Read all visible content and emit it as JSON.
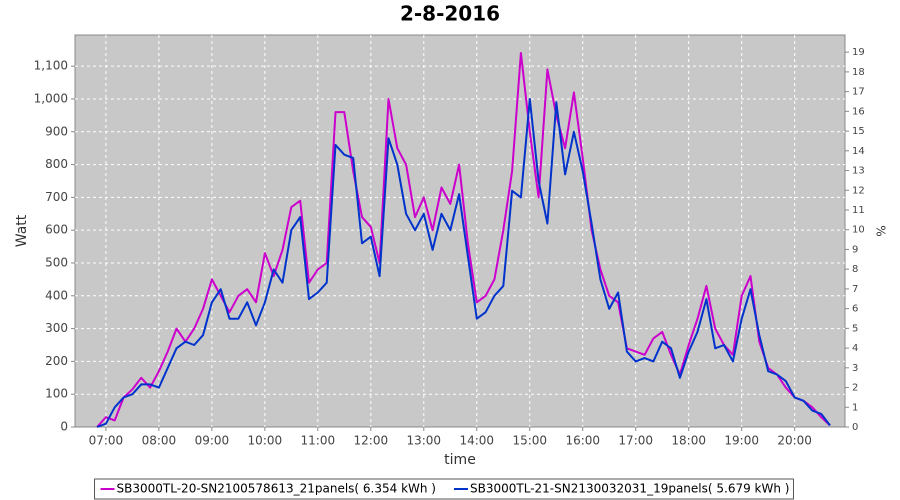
{
  "chart_data": {
    "type": "line",
    "title": "2-8-2016",
    "x_label": "time",
    "y_label": "Watt",
    "y2_label": "%",
    "x": [
      "06:50",
      "07:00",
      "07:10",
      "07:20",
      "07:30",
      "07:40",
      "07:50",
      "08:00",
      "08:10",
      "08:20",
      "08:30",
      "08:40",
      "08:50",
      "09:00",
      "09:10",
      "09:20",
      "09:30",
      "09:40",
      "09:50",
      "10:00",
      "10:10",
      "10:20",
      "10:30",
      "10:40",
      "10:50",
      "11:00",
      "11:10",
      "11:20",
      "11:30",
      "11:40",
      "11:50",
      "12:00",
      "12:10",
      "12:20",
      "12:30",
      "12:40",
      "12:50",
      "13:00",
      "13:10",
      "13:20",
      "13:30",
      "13:40",
      "13:50",
      "14:00",
      "14:10",
      "14:20",
      "14:30",
      "14:40",
      "14:50",
      "15:00",
      "15:10",
      "15:20",
      "15:30",
      "15:40",
      "15:50",
      "16:00",
      "16:10",
      "16:20",
      "16:30",
      "16:40",
      "16:50",
      "17:00",
      "17:10",
      "17:20",
      "17:30",
      "17:40",
      "17:50",
      "18:00",
      "18:10",
      "18:20",
      "18:30",
      "18:40",
      "18:50",
      "19:00",
      "19:10",
      "19:20",
      "19:30",
      "19:40",
      "19:50",
      "20:00",
      "20:10",
      "20:20",
      "20:30",
      "20:40"
    ],
    "series": [
      {
        "name": "SB3000TL-20-SN2100578613_21panels( 6.354 kWh )",
        "color": "#cc00cc",
        "values": [
          0,
          30,
          20,
          90,
          115,
          150,
          120,
          170,
          230,
          300,
          260,
          300,
          360,
          450,
          400,
          350,
          400,
          420,
          380,
          530,
          460,
          540,
          670,
          690,
          440,
          480,
          500,
          960,
          960,
          780,
          640,
          610,
          500,
          1000,
          850,
          800,
          640,
          700,
          600,
          730,
          680,
          800,
          560,
          380,
          400,
          450,
          600,
          780,
          1140,
          900,
          700,
          1090,
          950,
          850,
          1020,
          820,
          600,
          480,
          400,
          380,
          240,
          230,
          220,
          270,
          290,
          220,
          160,
          250,
          330,
          430,
          300,
          250,
          220,
          400,
          460,
          260,
          180,
          160,
          120,
          90,
          80,
          60,
          30,
          5
        ]
      },
      {
        "name": "SB3000TL-21-SN2130032031_19panels( 5.679 kWh )",
        "color": "#0033cc",
        "values": [
          0,
          10,
          60,
          90,
          100,
          130,
          130,
          120,
          180,
          240,
          260,
          250,
          280,
          380,
          420,
          330,
          330,
          380,
          310,
          380,
          480,
          440,
          600,
          640,
          390,
          410,
          440,
          860,
          830,
          820,
          560,
          580,
          460,
          880,
          800,
          650,
          600,
          650,
          540,
          650,
          600,
          710,
          520,
          330,
          350,
          400,
          430,
          720,
          700,
          1000,
          750,
          620,
          990,
          770,
          900,
          780,
          620,
          450,
          360,
          410,
          230,
          200,
          210,
          200,
          260,
          240,
          150,
          230,
          290,
          390,
          240,
          250,
          200,
          330,
          420,
          280,
          170,
          160,
          140,
          90,
          80,
          50,
          40,
          5
        ]
      }
    ],
    "xlim": [
      "06:25",
      "20:57"
    ],
    "xticks": [
      "07:00",
      "08:00",
      "09:00",
      "10:00",
      "11:00",
      "12:00",
      "13:00",
      "14:00",
      "15:00",
      "16:00",
      "17:00",
      "18:00",
      "19:00",
      "20:00"
    ],
    "ylim": [
      0,
      1195
    ],
    "yticks": [
      0,
      100,
      200,
      300,
      400,
      500,
      600,
      700,
      800,
      900,
      {
        "value": 1000,
        "label": "1,000"
      },
      {
        "value": 1100,
        "label": "1,100"
      }
    ],
    "y2lim": [
      0,
      19.87
    ],
    "y2ticks": [
      0,
      1,
      2,
      3,
      4,
      5,
      6,
      7,
      8,
      9,
      10,
      11,
      12,
      13,
      14,
      15,
      16,
      17,
      18,
      19
    ],
    "grid": true,
    "legend": "bottom"
  }
}
